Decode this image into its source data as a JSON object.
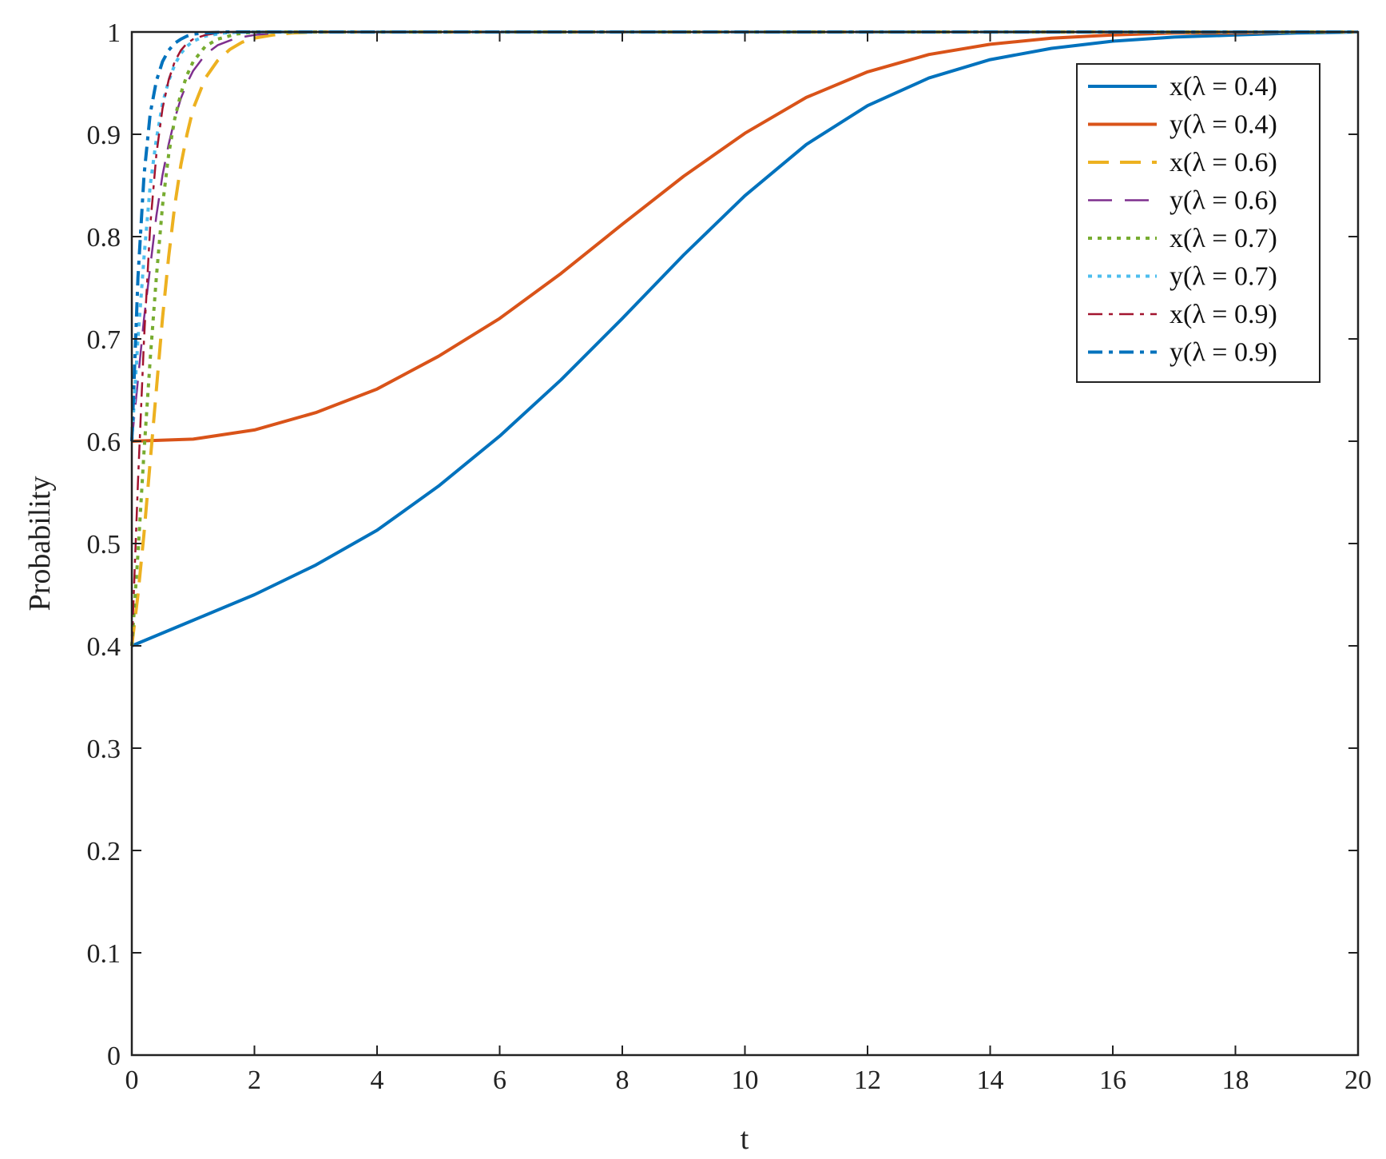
{
  "chart_data": {
    "type": "line",
    "title": "",
    "xlabel": "t",
    "ylabel": "Probability",
    "xlim": [
      0,
      20
    ],
    "ylim": [
      0,
      1
    ],
    "xticks": [
      "0",
      "2",
      "4",
      "6",
      "8",
      "10",
      "12",
      "14",
      "16",
      "18",
      "20"
    ],
    "yticks": [
      "0",
      "0.1",
      "0.2",
      "0.3",
      "0.4",
      "0.5",
      "0.6",
      "0.7",
      "0.8",
      "0.9",
      "1"
    ],
    "grid": false,
    "legend_position": "top-right",
    "series": [
      {
        "name": "x(λ = 0.4)",
        "color": "#0072BD",
        "style": "solid",
        "width": 4,
        "x": [
          0,
          1,
          2,
          3,
          4,
          5,
          6,
          7,
          8,
          9,
          10,
          11,
          12,
          13,
          14,
          15,
          16,
          17,
          18,
          19,
          20
        ],
        "y": [
          0.4,
          0.425,
          0.45,
          0.479,
          0.513,
          0.556,
          0.605,
          0.66,
          0.72,
          0.782,
          0.84,
          0.89,
          0.928,
          0.955,
          0.973,
          0.984,
          0.991,
          0.995,
          0.997,
          0.999,
          1.0
        ]
      },
      {
        "name": "y(λ = 0.4)",
        "color": "#D95319",
        "style": "solid",
        "width": 4,
        "x": [
          0,
          1,
          2,
          3,
          4,
          5,
          6,
          7,
          8,
          9,
          10,
          11,
          12,
          13,
          14,
          15,
          16,
          17,
          18,
          19,
          20
        ],
        "y": [
          0.6,
          0.602,
          0.611,
          0.628,
          0.651,
          0.683,
          0.72,
          0.764,
          0.812,
          0.859,
          0.901,
          0.936,
          0.961,
          0.978,
          0.988,
          0.994,
          0.997,
          0.999,
          0.999,
          1.0,
          1.0
        ]
      },
      {
        "name": "x(λ = 0.6)",
        "color": "#EDB120",
        "style": "dashed",
        "width": 4,
        "x": [
          0,
          0.1,
          0.2,
          0.3,
          0.4,
          0.5,
          0.6,
          0.7,
          0.8,
          0.9,
          1.0,
          1.2,
          1.4,
          1.6,
          1.8,
          2.0,
          2.3,
          2.6,
          3.0,
          20
        ],
        "y": [
          0.4,
          0.45,
          0.51,
          0.58,
          0.65,
          0.72,
          0.78,
          0.83,
          0.87,
          0.9,
          0.925,
          0.955,
          0.972,
          0.983,
          0.99,
          0.994,
          0.997,
          0.999,
          1.0,
          1.0
        ]
      },
      {
        "name": "y(λ = 0.6)",
        "color": "#7E2F8E",
        "style": "longdash",
        "width": 2.5,
        "x": [
          0,
          0.1,
          0.2,
          0.3,
          0.4,
          0.5,
          0.6,
          0.7,
          0.8,
          0.9,
          1.0,
          1.2,
          1.4,
          1.7,
          2.0,
          2.5,
          20
        ],
        "y": [
          0.6,
          0.66,
          0.72,
          0.77,
          0.82,
          0.86,
          0.89,
          0.915,
          0.935,
          0.95,
          0.962,
          0.978,
          0.987,
          0.994,
          0.997,
          1.0,
          1.0
        ]
      },
      {
        "name": "x(λ = 0.7)",
        "color": "#77AC30",
        "style": "dotted",
        "width": 4,
        "x": [
          0,
          0.1,
          0.2,
          0.3,
          0.4,
          0.5,
          0.6,
          0.7,
          0.8,
          0.9,
          1.0,
          1.2,
          1.4,
          1.7,
          2.0,
          20
        ],
        "y": [
          0.4,
          0.49,
          0.59,
          0.68,
          0.76,
          0.83,
          0.88,
          0.915,
          0.94,
          0.958,
          0.971,
          0.986,
          0.993,
          0.998,
          1.0,
          1.0
        ]
      },
      {
        "name": "y(λ = 0.7)",
        "color": "#4DBEEE",
        "style": "dotted",
        "width": 4,
        "x": [
          0,
          0.1,
          0.2,
          0.3,
          0.4,
          0.5,
          0.6,
          0.7,
          0.8,
          0.9,
          1.0,
          1.2,
          1.5,
          1.8,
          20
        ],
        "y": [
          0.6,
          0.7,
          0.78,
          0.85,
          0.895,
          0.93,
          0.952,
          0.968,
          0.979,
          0.986,
          0.991,
          0.996,
          0.999,
          1.0,
          1.0
        ]
      },
      {
        "name": "x(λ = 0.9)",
        "color": "#A2142F",
        "style": "dashdot",
        "width": 2.5,
        "x": [
          0,
          0.1,
          0.2,
          0.3,
          0.4,
          0.5,
          0.6,
          0.7,
          0.8,
          0.9,
          1.0,
          1.2,
          1.5,
          20
        ],
        "y": [
          0.4,
          0.56,
          0.7,
          0.81,
          0.88,
          0.925,
          0.953,
          0.971,
          0.982,
          0.989,
          0.993,
          0.997,
          1.0,
          1.0
        ]
      },
      {
        "name": "y(λ = 0.9)",
        "color": "#0072BD",
        "style": "dashdot",
        "width": 4,
        "x": [
          0,
          0.1,
          0.2,
          0.3,
          0.4,
          0.5,
          0.6,
          0.7,
          0.8,
          0.9,
          1.0,
          1.2,
          1.5,
          20
        ],
        "y": [
          0.6,
          0.76,
          0.86,
          0.92,
          0.952,
          0.971,
          0.982,
          0.989,
          0.993,
          0.996,
          0.998,
          0.999,
          1.0,
          1.0
        ]
      }
    ]
  }
}
